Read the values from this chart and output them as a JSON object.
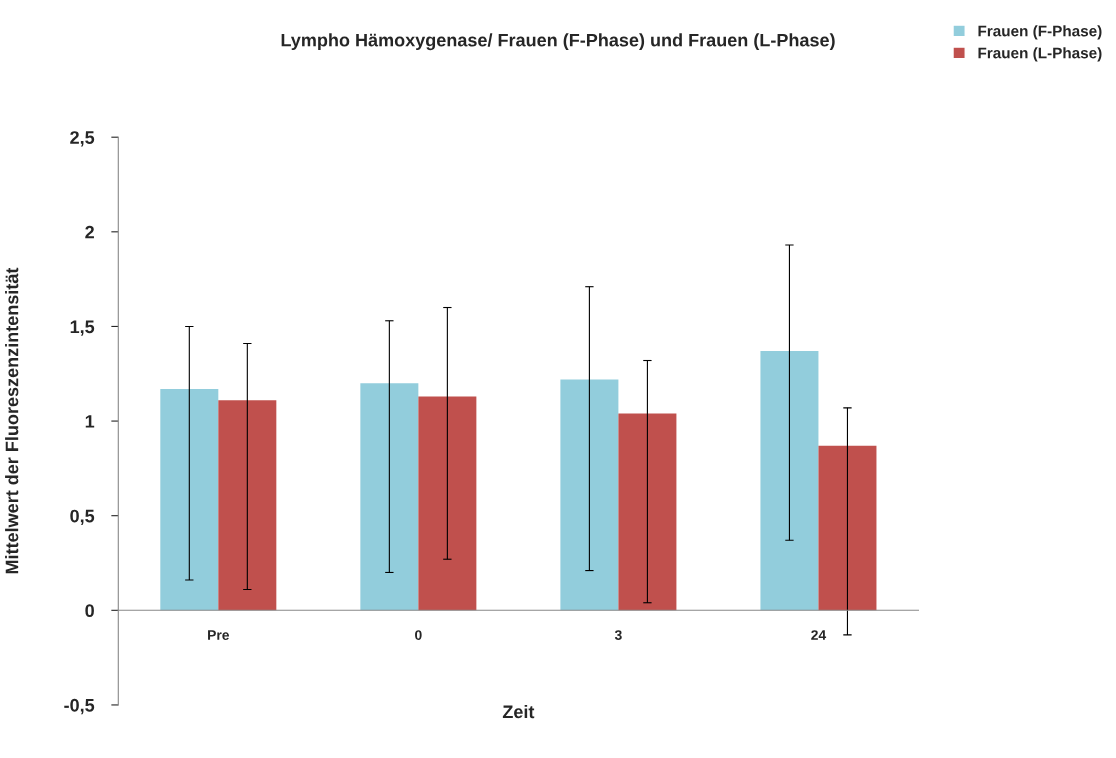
{
  "chart_data": {
    "type": "bar",
    "title": "Lympho Hämoxygenase/ Frauen (F-Phase) und Frauen (L-Phase)",
    "xlabel": "Zeit",
    "ylabel": "Mittelwert der Fluoreszenzintensität",
    "categories": [
      "Pre",
      "0",
      "3",
      "24"
    ],
    "series": [
      {
        "name": "Frauen (F-Phase)",
        "color": "#92cddc",
        "values": [
          1.17,
          1.2,
          1.22,
          1.37
        ],
        "errors": [
          [
            0.16,
            1.5
          ],
          [
            0.2,
            1.53
          ],
          [
            0.21,
            1.71
          ],
          [
            0.37,
            1.93
          ]
        ]
      },
      {
        "name": "Frauen (L-Phase)",
        "color": "#c0504d",
        "values": [
          1.11,
          1.13,
          1.04,
          0.87
        ],
        "errors": [
          [
            0.11,
            1.41
          ],
          [
            0.27,
            1.6
          ],
          [
            0.04,
            1.32
          ],
          [
            -0.13,
            1.07
          ]
        ]
      }
    ],
    "ylim": [
      -0.5,
      2.5
    ],
    "yticks": [
      {
        "value": -0.5,
        "label": "-0,5"
      },
      0,
      {
        "value": 0.5,
        "label": "0,5"
      },
      1,
      {
        "value": 1.5,
        "label": "1,5"
      },
      2,
      {
        "value": 2.5,
        "label": "2,5"
      }
    ],
    "legend": "top right",
    "grid": false
  }
}
